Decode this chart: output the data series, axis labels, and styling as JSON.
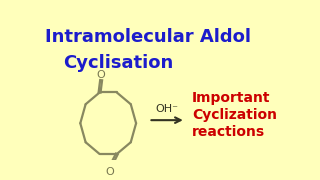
{
  "title_line1": "Intramolecular Aldol",
  "title_line2": "Cyclisation",
  "title_color": "#1c1ccc",
  "right_line1": "Important",
  "right_line2": "Cyclization",
  "right_line3": "reactions",
  "right_color": "#cc0000",
  "arrow_label": "OH⁻",
  "background_color": "#ffffbb",
  "ring_color": "#888860",
  "carbonyl_color": "#777750",
  "text_color": "#333311"
}
